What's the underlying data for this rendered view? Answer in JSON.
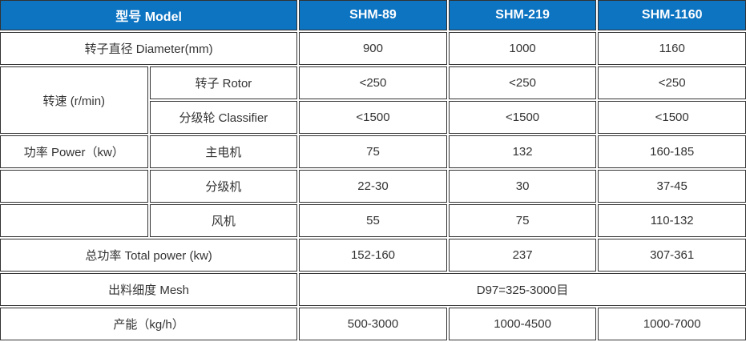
{
  "colors": {
    "header_bg": "#0d74c2",
    "header_text": "#ffffff",
    "border": "#333333",
    "cell_text": "#333333",
    "cell_bg": "#ffffff"
  },
  "table": {
    "header": {
      "model_label": "型号 Model",
      "models": [
        "SHM-89",
        "SHM-219",
        "SHM-1160"
      ]
    },
    "rows": {
      "diameter": {
        "label": "转子直径 Diameter(mm)",
        "values": [
          "900",
          "1000",
          "1160"
        ]
      },
      "speed": {
        "group_label": "转速 (r/min)",
        "rotor": {
          "label": "转子 Rotor",
          "values": [
            "<250",
            "<250",
            "<250"
          ]
        },
        "classifier": {
          "label": "分级轮 Classifier",
          "values": [
            "<1500",
            "<1500",
            "<1500"
          ]
        }
      },
      "power": {
        "group_label": "功率 Power（kw）",
        "main_motor": {
          "label": "主电机",
          "values": [
            "75",
            "132",
            "160-185"
          ]
        },
        "classifier_motor": {
          "label": "分级机",
          "values": [
            "22-30",
            "30",
            "37-45"
          ]
        },
        "fan": {
          "label": "风机",
          "values": [
            "55",
            "75",
            "110-132"
          ]
        }
      },
      "total_power": {
        "label": "总功率 Total power (kw)",
        "values": [
          "152-160",
          "237",
          "307-361"
        ]
      },
      "mesh": {
        "label": "出料细度 Mesh",
        "value": "D97=325-3000目"
      },
      "capacity": {
        "label": "产能（kg/h）",
        "values": [
          "500-3000",
          "1000-4500",
          "1000-7000"
        ]
      }
    }
  }
}
